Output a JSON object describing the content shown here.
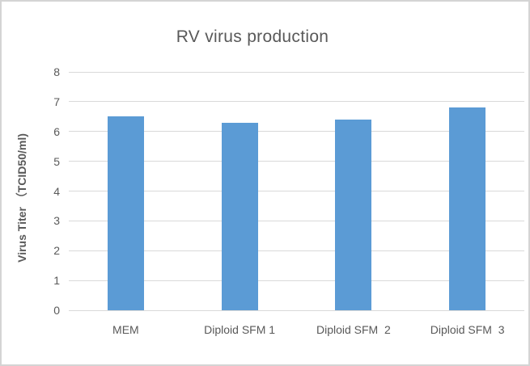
{
  "chart_data": {
    "type": "bar",
    "title": "RV virus production",
    "categories": [
      "MEM",
      "Diploid SFM 1",
      "Diploid SFM  2",
      "Diploid SFM  3"
    ],
    "values": [
      6.5,
      6.3,
      6.4,
      6.8
    ],
    "xlabel": "",
    "ylabel": "Virus Titer （TCID50/ml)",
    "ylim": [
      0,
      8
    ],
    "ytick_step": 1,
    "ytick_labels": [
      "0",
      "1",
      "2",
      "3",
      "4",
      "5",
      "6",
      "7",
      "8"
    ],
    "grid": true,
    "legend": false,
    "colors": {
      "bar": "#5B9BD5",
      "gridline": "#D9D9D9",
      "text": "#595959",
      "frame_border": "#D4D4D4",
      "background": "#FFFFFF"
    }
  }
}
